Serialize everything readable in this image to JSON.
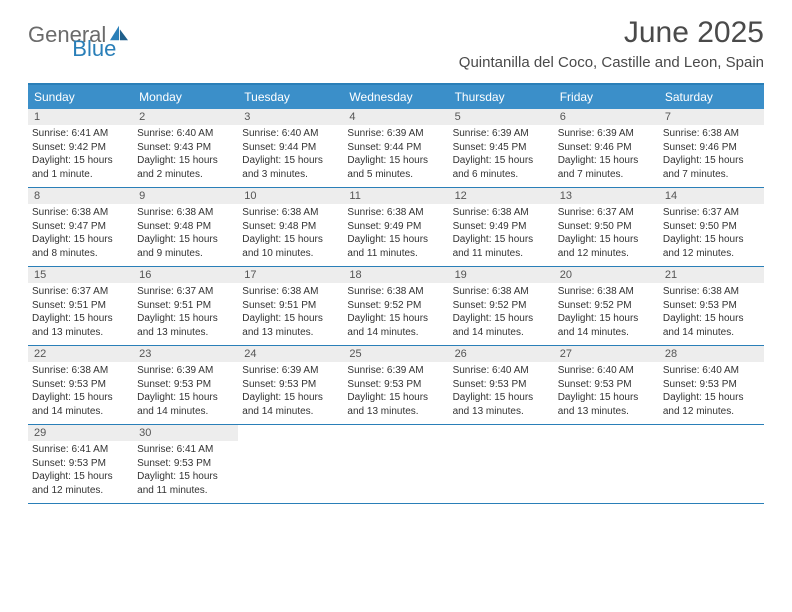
{
  "brand": {
    "part1": "General",
    "part2": "Blue"
  },
  "title": "June 2025",
  "location": "Quintanilla del Coco, Castille and Leon, Spain",
  "colors": {
    "header_bg": "#3b8fc9",
    "border": "#2a7fb8",
    "daynum_bg": "#ededed",
    "text": "#333333",
    "title_text": "#4a4a4a"
  },
  "dow": [
    "Sunday",
    "Monday",
    "Tuesday",
    "Wednesday",
    "Thursday",
    "Friday",
    "Saturday"
  ],
  "weeks": [
    [
      {
        "n": "1",
        "sr": "Sunrise: 6:41 AM",
        "ss": "Sunset: 9:42 PM",
        "d1": "Daylight: 15 hours",
        "d2": "and 1 minute."
      },
      {
        "n": "2",
        "sr": "Sunrise: 6:40 AM",
        "ss": "Sunset: 9:43 PM",
        "d1": "Daylight: 15 hours",
        "d2": "and 2 minutes."
      },
      {
        "n": "3",
        "sr": "Sunrise: 6:40 AM",
        "ss": "Sunset: 9:44 PM",
        "d1": "Daylight: 15 hours",
        "d2": "and 3 minutes."
      },
      {
        "n": "4",
        "sr": "Sunrise: 6:39 AM",
        "ss": "Sunset: 9:44 PM",
        "d1": "Daylight: 15 hours",
        "d2": "and 5 minutes."
      },
      {
        "n": "5",
        "sr": "Sunrise: 6:39 AM",
        "ss": "Sunset: 9:45 PM",
        "d1": "Daylight: 15 hours",
        "d2": "and 6 minutes."
      },
      {
        "n": "6",
        "sr": "Sunrise: 6:39 AM",
        "ss": "Sunset: 9:46 PM",
        "d1": "Daylight: 15 hours",
        "d2": "and 7 minutes."
      },
      {
        "n": "7",
        "sr": "Sunrise: 6:38 AM",
        "ss": "Sunset: 9:46 PM",
        "d1": "Daylight: 15 hours",
        "d2": "and 7 minutes."
      }
    ],
    [
      {
        "n": "8",
        "sr": "Sunrise: 6:38 AM",
        "ss": "Sunset: 9:47 PM",
        "d1": "Daylight: 15 hours",
        "d2": "and 8 minutes."
      },
      {
        "n": "9",
        "sr": "Sunrise: 6:38 AM",
        "ss": "Sunset: 9:48 PM",
        "d1": "Daylight: 15 hours",
        "d2": "and 9 minutes."
      },
      {
        "n": "10",
        "sr": "Sunrise: 6:38 AM",
        "ss": "Sunset: 9:48 PM",
        "d1": "Daylight: 15 hours",
        "d2": "and 10 minutes."
      },
      {
        "n": "11",
        "sr": "Sunrise: 6:38 AM",
        "ss": "Sunset: 9:49 PM",
        "d1": "Daylight: 15 hours",
        "d2": "and 11 minutes."
      },
      {
        "n": "12",
        "sr": "Sunrise: 6:38 AM",
        "ss": "Sunset: 9:49 PM",
        "d1": "Daylight: 15 hours",
        "d2": "and 11 minutes."
      },
      {
        "n": "13",
        "sr": "Sunrise: 6:37 AM",
        "ss": "Sunset: 9:50 PM",
        "d1": "Daylight: 15 hours",
        "d2": "and 12 minutes."
      },
      {
        "n": "14",
        "sr": "Sunrise: 6:37 AM",
        "ss": "Sunset: 9:50 PM",
        "d1": "Daylight: 15 hours",
        "d2": "and 12 minutes."
      }
    ],
    [
      {
        "n": "15",
        "sr": "Sunrise: 6:37 AM",
        "ss": "Sunset: 9:51 PM",
        "d1": "Daylight: 15 hours",
        "d2": "and 13 minutes."
      },
      {
        "n": "16",
        "sr": "Sunrise: 6:37 AM",
        "ss": "Sunset: 9:51 PM",
        "d1": "Daylight: 15 hours",
        "d2": "and 13 minutes."
      },
      {
        "n": "17",
        "sr": "Sunrise: 6:38 AM",
        "ss": "Sunset: 9:51 PM",
        "d1": "Daylight: 15 hours",
        "d2": "and 13 minutes."
      },
      {
        "n": "18",
        "sr": "Sunrise: 6:38 AM",
        "ss": "Sunset: 9:52 PM",
        "d1": "Daylight: 15 hours",
        "d2": "and 14 minutes."
      },
      {
        "n": "19",
        "sr": "Sunrise: 6:38 AM",
        "ss": "Sunset: 9:52 PM",
        "d1": "Daylight: 15 hours",
        "d2": "and 14 minutes."
      },
      {
        "n": "20",
        "sr": "Sunrise: 6:38 AM",
        "ss": "Sunset: 9:52 PM",
        "d1": "Daylight: 15 hours",
        "d2": "and 14 minutes."
      },
      {
        "n": "21",
        "sr": "Sunrise: 6:38 AM",
        "ss": "Sunset: 9:53 PM",
        "d1": "Daylight: 15 hours",
        "d2": "and 14 minutes."
      }
    ],
    [
      {
        "n": "22",
        "sr": "Sunrise: 6:38 AM",
        "ss": "Sunset: 9:53 PM",
        "d1": "Daylight: 15 hours",
        "d2": "and 14 minutes."
      },
      {
        "n": "23",
        "sr": "Sunrise: 6:39 AM",
        "ss": "Sunset: 9:53 PM",
        "d1": "Daylight: 15 hours",
        "d2": "and 14 minutes."
      },
      {
        "n": "24",
        "sr": "Sunrise: 6:39 AM",
        "ss": "Sunset: 9:53 PM",
        "d1": "Daylight: 15 hours",
        "d2": "and 14 minutes."
      },
      {
        "n": "25",
        "sr": "Sunrise: 6:39 AM",
        "ss": "Sunset: 9:53 PM",
        "d1": "Daylight: 15 hours",
        "d2": "and 13 minutes."
      },
      {
        "n": "26",
        "sr": "Sunrise: 6:40 AM",
        "ss": "Sunset: 9:53 PM",
        "d1": "Daylight: 15 hours",
        "d2": "and 13 minutes."
      },
      {
        "n": "27",
        "sr": "Sunrise: 6:40 AM",
        "ss": "Sunset: 9:53 PM",
        "d1": "Daylight: 15 hours",
        "d2": "and 13 minutes."
      },
      {
        "n": "28",
        "sr": "Sunrise: 6:40 AM",
        "ss": "Sunset: 9:53 PM",
        "d1": "Daylight: 15 hours",
        "d2": "and 12 minutes."
      }
    ],
    [
      {
        "n": "29",
        "sr": "Sunrise: 6:41 AM",
        "ss": "Sunset: 9:53 PM",
        "d1": "Daylight: 15 hours",
        "d2": "and 12 minutes."
      },
      {
        "n": "30",
        "sr": "Sunrise: 6:41 AM",
        "ss": "Sunset: 9:53 PM",
        "d1": "Daylight: 15 hours",
        "d2": "and 11 minutes."
      },
      null,
      null,
      null,
      null,
      null
    ]
  ]
}
